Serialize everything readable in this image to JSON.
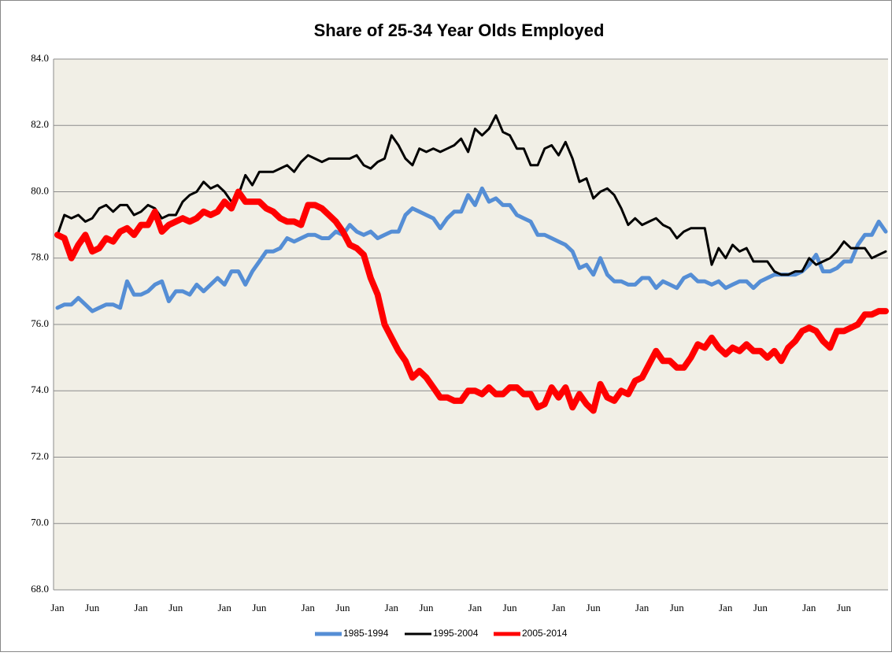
{
  "chart_data": {
    "type": "line",
    "title": "Share of 25-34 Year Olds Employed",
    "categories": [
      "Jan",
      null,
      null,
      null,
      null,
      "Jun",
      null,
      null,
      null,
      null,
      null,
      null,
      "Jan",
      null,
      null,
      null,
      null,
      "Jun",
      null,
      null,
      null,
      null,
      null,
      null,
      "Jan",
      null,
      null,
      null,
      null,
      "Jun",
      null,
      null,
      null,
      null,
      null,
      null,
      "Jan",
      null,
      null,
      null,
      null,
      "Jun",
      null,
      null,
      null,
      null,
      null,
      null,
      "Jan",
      null,
      null,
      null,
      null,
      "Jun",
      null,
      null,
      null,
      null,
      null,
      null,
      "Jan",
      null,
      null,
      null,
      null,
      "Jun",
      null,
      null,
      null,
      null,
      null,
      null,
      "Jan",
      null,
      null,
      null,
      null,
      "Jun",
      null,
      null,
      null,
      null,
      null,
      null,
      "Jan",
      null,
      null,
      null,
      null,
      "Jun",
      null,
      null,
      null,
      null,
      null,
      null,
      "Jan",
      null,
      null,
      null,
      null,
      "Jun",
      null,
      null,
      null,
      null,
      null,
      null,
      "Jan",
      null,
      null,
      null,
      null,
      "Jun",
      null,
      null,
      null,
      null,
      null,
      null
    ],
    "series": [
      {
        "name": "1985-1994",
        "color": "#558ed5",
        "values": [
          76.5,
          76.6,
          76.6,
          76.8,
          76.6,
          76.4,
          76.5,
          76.6,
          76.6,
          76.5,
          77.3,
          76.9,
          76.9,
          77.0,
          77.2,
          77.3,
          76.7,
          77.0,
          77.0,
          76.9,
          77.2,
          77.0,
          77.2,
          77.4,
          77.2,
          77.6,
          77.6,
          77.2,
          77.6,
          77.9,
          78.2,
          78.2,
          78.3,
          78.6,
          78.5,
          78.6,
          78.7,
          78.7,
          78.6,
          78.6,
          78.8,
          78.7,
          79.0,
          78.8,
          78.7,
          78.8,
          78.6,
          78.7,
          78.8,
          78.8,
          79.3,
          79.5,
          79.4,
          79.3,
          79.2,
          78.9,
          79.2,
          79.4,
          79.4,
          79.9,
          79.6,
          80.1,
          79.7,
          79.8,
          79.6,
          79.6,
          79.3,
          79.2,
          79.1,
          78.7,
          78.7,
          78.6,
          78.5,
          78.4,
          78.2,
          77.7,
          77.8,
          77.5,
          78.0,
          77.5,
          77.3,
          77.3,
          77.2,
          77.2,
          77.4,
          77.4,
          77.1,
          77.3,
          77.2,
          77.1,
          77.4,
          77.5,
          77.3,
          77.3,
          77.2,
          77.3,
          77.1,
          77.2,
          77.3,
          77.3,
          77.1,
          77.3,
          77.4,
          77.5,
          77.5,
          77.5,
          77.5,
          77.6,
          77.8,
          78.1,
          77.6,
          77.6,
          77.7,
          77.9,
          77.9,
          78.4,
          78.7,
          78.7,
          79.1,
          78.8
        ]
      },
      {
        "name": "1995-2004",
        "color": "#000000",
        "values": [
          78.7,
          79.3,
          79.2,
          79.3,
          79.1,
          79.2,
          79.5,
          79.6,
          79.4,
          79.6,
          79.6,
          79.3,
          79.4,
          79.6,
          79.5,
          79.2,
          79.3,
          79.3,
          79.7,
          79.9,
          80.0,
          80.3,
          80.1,
          80.2,
          80.0,
          79.7,
          79.9,
          80.5,
          80.2,
          80.6,
          80.6,
          80.6,
          80.7,
          80.8,
          80.6,
          80.9,
          81.1,
          81.0,
          80.9,
          81.0,
          81.0,
          81.0,
          81.0,
          81.1,
          80.8,
          80.7,
          80.9,
          81.0,
          81.7,
          81.4,
          81.0,
          80.8,
          81.3,
          81.2,
          81.3,
          81.2,
          81.3,
          81.4,
          81.6,
          81.2,
          81.9,
          81.7,
          81.9,
          82.3,
          81.8,
          81.7,
          81.3,
          81.3,
          80.8,
          80.8,
          81.3,
          81.4,
          81.1,
          81.5,
          81.0,
          80.3,
          80.4,
          79.8,
          80.0,
          80.1,
          79.9,
          79.5,
          79.0,
          79.2,
          79.0,
          79.1,
          79.2,
          79.0,
          78.9,
          78.6,
          78.8,
          78.9,
          78.9,
          78.9,
          77.8,
          78.3,
          78.0,
          78.4,
          78.2,
          78.3,
          77.9,
          77.9,
          77.9,
          77.6,
          77.5,
          77.5,
          77.6,
          77.6,
          78.0,
          77.8,
          77.9,
          78.0,
          78.2,
          78.5,
          78.3,
          78.3,
          78.3,
          78.0,
          78.1,
          78.2
        ]
      },
      {
        "name": "2005-2014",
        "color": "#ff0000",
        "values": [
          78.7,
          78.6,
          78.0,
          78.4,
          78.7,
          78.2,
          78.3,
          78.6,
          78.5,
          78.8,
          78.9,
          78.7,
          79.0,
          79.0,
          79.4,
          78.8,
          79.0,
          79.1,
          79.2,
          79.1,
          79.2,
          79.4,
          79.3,
          79.4,
          79.7,
          79.5,
          80.0,
          79.7,
          79.7,
          79.7,
          79.5,
          79.4,
          79.2,
          79.1,
          79.1,
          79.0,
          79.6,
          79.6,
          79.5,
          79.3,
          79.1,
          78.8,
          78.4,
          78.3,
          78.1,
          77.4,
          76.9,
          76.0,
          75.6,
          75.2,
          74.9,
          74.4,
          74.6,
          74.4,
          74.1,
          73.8,
          73.8,
          73.7,
          73.7,
          74.0,
          74.0,
          73.9,
          74.1,
          73.9,
          73.9,
          74.1,
          74.1,
          73.9,
          73.9,
          73.5,
          73.6,
          74.1,
          73.8,
          74.1,
          73.5,
          73.9,
          73.6,
          73.4,
          74.2,
          73.8,
          73.7,
          74.0,
          73.9,
          74.3,
          74.4,
          74.8,
          75.2,
          74.9,
          74.9,
          74.7,
          74.7,
          75.0,
          75.4,
          75.3,
          75.6,
          75.3,
          75.1,
          75.3,
          75.2,
          75.4,
          75.2,
          75.2,
          75.0,
          75.2,
          74.9,
          75.3,
          75.5,
          75.8,
          75.9,
          75.8,
          75.5,
          75.3,
          75.8,
          75.8,
          75.9,
          76.0,
          76.3,
          76.3,
          76.4,
          76.4
        ]
      }
    ],
    "ylim": [
      68,
      84
    ],
    "yticks": [
      {
        "value": 68,
        "label": "68.0"
      },
      {
        "value": 70,
        "label": "70.0"
      },
      {
        "value": 72,
        "label": "72.0"
      },
      {
        "value": 74,
        "label": "74.0"
      },
      {
        "value": 76,
        "label": "76.0"
      },
      {
        "value": 78,
        "label": "78.0"
      },
      {
        "value": 80,
        "label": "80.0"
      },
      {
        "value": 82,
        "label": "82.0"
      },
      {
        "value": 84,
        "label": "84.0"
      }
    ],
    "grid": true,
    "legend": "bottom"
  }
}
